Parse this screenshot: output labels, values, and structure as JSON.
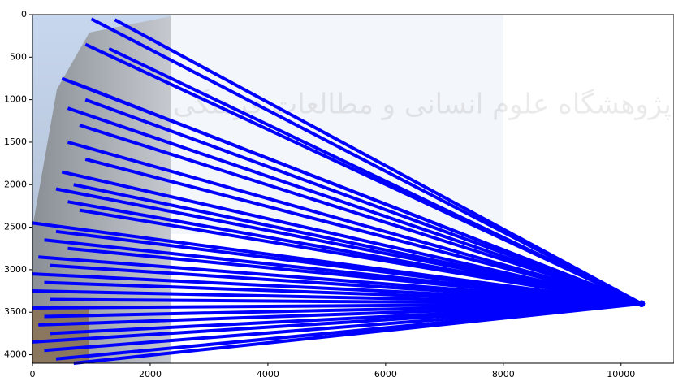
{
  "watermark": "پژوهشگاه علوم انسانی و مطالعات فرهنگی",
  "chart_data": {
    "type": "line",
    "xlim": [
      0,
      10900
    ],
    "ylim": [
      4100,
      0
    ],
    "xticks": [
      0,
      2000,
      4000,
      6000,
      8000,
      10000
    ],
    "yticks": [
      0,
      500,
      1000,
      1500,
      2000,
      2500,
      3000,
      3500,
      4000
    ],
    "series": [
      {
        "color": "#0000ff",
        "x": [
          1000,
          10350
        ],
        "values": [
          50,
          3400
        ]
      },
      {
        "color": "#0000ff",
        "x": [
          1400,
          10350
        ],
        "values": [
          60,
          3400
        ]
      },
      {
        "color": "#0000ff",
        "x": [
          900,
          10350
        ],
        "values": [
          350,
          3400
        ]
      },
      {
        "color": "#0000ff",
        "x": [
          1300,
          10350
        ],
        "values": [
          400,
          3400
        ]
      },
      {
        "color": "#0000ff",
        "x": [
          500,
          10350
        ],
        "values": [
          750,
          3400
        ]
      },
      {
        "color": "#0000ff",
        "x": [
          700,
          10350
        ],
        "values": [
          800,
          3400
        ]
      },
      {
        "color": "#0000ff",
        "x": [
          900,
          10350
        ],
        "values": [
          1000,
          3400
        ]
      },
      {
        "color": "#0000ff",
        "x": [
          600,
          10350
        ],
        "values": [
          1100,
          3400
        ]
      },
      {
        "color": "#0000ff",
        "x": [
          800,
          10350
        ],
        "values": [
          1300,
          3400
        ]
      },
      {
        "color": "#0000ff",
        "x": [
          600,
          10350
        ],
        "values": [
          1500,
          3400
        ]
      },
      {
        "color": "#0000ff",
        "x": [
          900,
          10350
        ],
        "values": [
          1700,
          3400
        ]
      },
      {
        "color": "#0000ff",
        "x": [
          500,
          10350
        ],
        "values": [
          1850,
          3400
        ]
      },
      {
        "color": "#0000ff",
        "x": [
          700,
          10350
        ],
        "values": [
          2000,
          3400
        ]
      },
      {
        "color": "#0000ff",
        "x": [
          400,
          10350
        ],
        "values": [
          2050,
          3400
        ]
      },
      {
        "color": "#0000ff",
        "x": [
          600,
          10350
        ],
        "values": [
          2200,
          3400
        ]
      },
      {
        "color": "#0000ff",
        "x": [
          800,
          10350
        ],
        "values": [
          2300,
          3400
        ]
      },
      {
        "color": "#0000ff",
        "x": [
          0,
          10350
        ],
        "values": [
          2450,
          3400
        ]
      },
      {
        "color": "#0000ff",
        "x": [
          400,
          10350
        ],
        "values": [
          2550,
          3400
        ]
      },
      {
        "color": "#0000ff",
        "x": [
          200,
          10350
        ],
        "values": [
          2650,
          3400
        ]
      },
      {
        "color": "#0000ff",
        "x": [
          600,
          10350
        ],
        "values": [
          2750,
          3400
        ]
      },
      {
        "color": "#0000ff",
        "x": [
          100,
          10350
        ],
        "values": [
          2850,
          3400
        ]
      },
      {
        "color": "#0000ff",
        "x": [
          300,
          10350
        ],
        "values": [
          2950,
          3400
        ]
      },
      {
        "color": "#0000ff",
        "x": [
          0,
          10350
        ],
        "values": [
          3050,
          3400
        ]
      },
      {
        "color": "#0000ff",
        "x": [
          200,
          10350
        ],
        "values": [
          3150,
          3400
        ]
      },
      {
        "color": "#0000ff",
        "x": [
          0,
          10350
        ],
        "values": [
          3250,
          3400
        ]
      },
      {
        "color": "#0000ff",
        "x": [
          300,
          10350
        ],
        "values": [
          3350,
          3400
        ]
      },
      {
        "color": "#0000ff",
        "x": [
          0,
          10350
        ],
        "values": [
          3450,
          3400
        ]
      },
      {
        "color": "#0000ff",
        "x": [
          200,
          10350
        ],
        "values": [
          3550,
          3400
        ]
      },
      {
        "color": "#0000ff",
        "x": [
          100,
          10350
        ],
        "values": [
          3650,
          3400
        ]
      },
      {
        "color": "#0000ff",
        "x": [
          300,
          10350
        ],
        "values": [
          3750,
          3400
        ]
      },
      {
        "color": "#0000ff",
        "x": [
          0,
          10350
        ],
        "values": [
          3850,
          3400
        ]
      },
      {
        "color": "#0000ff",
        "x": [
          200,
          10350
        ],
        "values": [
          3950,
          3400
        ]
      },
      {
        "color": "#0000ff",
        "x": [
          400,
          10350
        ],
        "values": [
          4050,
          3400
        ]
      },
      {
        "color": "#0000ff",
        "x": [
          700,
          10350
        ],
        "values": [
          4100,
          3400
        ]
      }
    ]
  }
}
